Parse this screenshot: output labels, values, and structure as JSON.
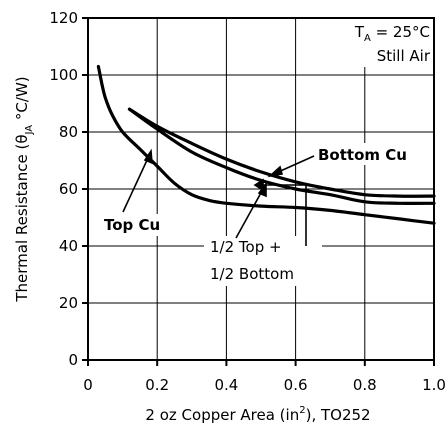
{
  "chart_data": {
    "type": "line",
    "xlabel": "2 oz Copper Area (in²), TO252",
    "ylabel": "Thermal Resistance (θJA °C/W)",
    "xlim": [
      0,
      1.0
    ],
    "ylim": [
      0,
      120
    ],
    "xticks": [
      0,
      0.2,
      0.4,
      0.6,
      0.8,
      1.0
    ],
    "xtick_labels": [
      "0",
      "0.2",
      "0.4",
      "0.6",
      "0.8",
      "1.0"
    ],
    "yticks": [
      0,
      20,
      40,
      60,
      80,
      100,
      120
    ],
    "ytick_labels": [
      "0",
      "20",
      "40",
      "60",
      "80",
      "100",
      "120"
    ],
    "grid": true,
    "conditions": [
      "TA = 25°C",
      "Still Air"
    ],
    "series": [
      {
        "name": "Top Cu",
        "x": [
          0.03,
          0.04,
          0.05,
          0.07,
          0.1,
          0.15,
          0.2,
          0.25,
          0.3,
          0.35,
          0.4,
          0.5,
          0.6,
          0.7,
          0.8,
          0.9,
          1.0
        ],
        "y": [
          103,
          97,
          92,
          86,
          80,
          74,
          68,
          62,
          58,
          56,
          55,
          54,
          53.5,
          52.5,
          51,
          49.5,
          48
        ]
      },
      {
        "name": "Bottom Cu",
        "x": [
          0.12,
          0.2,
          0.3,
          0.4,
          0.5,
          0.6,
          0.7,
          0.8,
          0.9,
          1.0
        ],
        "y": [
          88,
          82,
          76,
          70.5,
          66,
          62.5,
          60,
          58,
          57.5,
          57.5
        ]
      },
      {
        "name": "1/2 Top + 1/2 Bottom",
        "x": [
          0.12,
          0.2,
          0.3,
          0.4,
          0.5,
          0.6,
          0.7,
          0.8,
          0.9,
          1.0
        ],
        "y": [
          88,
          81,
          73,
          67.5,
          63,
          60,
          58,
          55.5,
          55,
          55
        ]
      }
    ],
    "annotations": [
      {
        "text": "Bottom Cu",
        "style": "bold"
      },
      {
        "text": "Top Cu",
        "style": "bold"
      },
      {
        "text": "1/2 Top +",
        "style": "normal"
      },
      {
        "text": "1/2 Bottom",
        "style": "normal"
      }
    ]
  }
}
